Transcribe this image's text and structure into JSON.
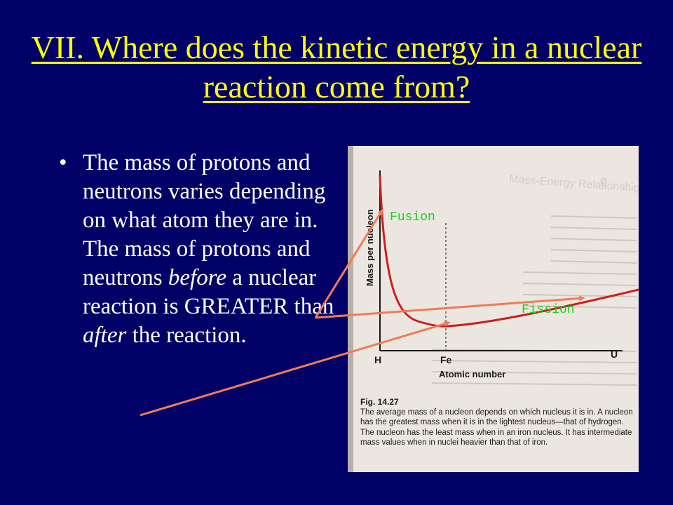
{
  "slide": {
    "title": "VII. Where does the kinetic energy in a nuclear reaction come from?",
    "bullet_marker": "•",
    "bullet_parts": [
      "The mass of protons and neutrons varies depending on what atom they are in. The mass of protons and neutrons ",
      "before",
      " a nuclear reaction is GREATER than ",
      "after",
      " the reaction."
    ]
  },
  "figure": {
    "header_faded": "Mass-Energy Relationship",
    "y_axis_label": "Mass per nucleon",
    "x_axis_label": "Atomic number",
    "x_ticks": [
      "H",
      "Fe",
      "U"
    ],
    "fig_label": "Fig. 14.27",
    "caption": "The average mass of a nucleon depends on which nucleus it is in. A nucleon has the greatest mass when it is in the lightest nucleus—that of hydrogen. The nucleon has the least mass when in an iron nucleus. It has intermediate mass values when in nuclei heavier than that of iron.",
    "curve_color": "#cc1f1f"
  },
  "annotations": {
    "fusion_label": "Fusion",
    "fission_label": "Fission",
    "arrow_color": "#f07b5a",
    "label_color": "#22cc22"
  }
}
